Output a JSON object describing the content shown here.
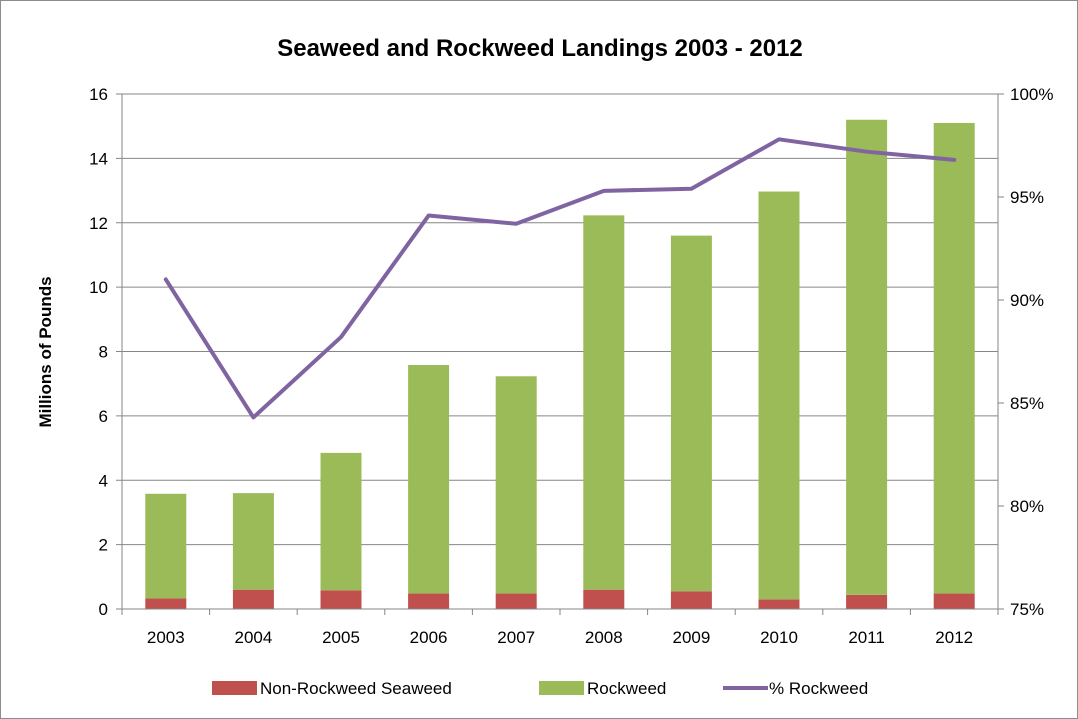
{
  "chart_data": {
    "type": "bar",
    "title": "Seaweed and Rockweed Landings 2003 - 2012",
    "ylabel": "Millions of Pounds",
    "xlabel": "",
    "categories": [
      "2003",
      "2004",
      "2005",
      "2006",
      "2007",
      "2008",
      "2009",
      "2010",
      "2011",
      "2012"
    ],
    "ylim": [
      0,
      16
    ],
    "y_ticks": [
      "0",
      "2",
      "4",
      "6",
      "8",
      "10",
      "12",
      "14",
      "16"
    ],
    "y2lim": [
      75,
      100
    ],
    "y2_ticks": [
      "75%",
      "80%",
      "85%",
      "90%",
      "95%",
      "100%"
    ],
    "stacked": true,
    "grid": true,
    "legend_position": "bottom",
    "series": [
      {
        "name": "Non-Rockweed Seaweed",
        "type": "bar",
        "axis": "left",
        "color": "#c0504d",
        "values": [
          0.33,
          0.6,
          0.58,
          0.48,
          0.48,
          0.6,
          0.55,
          0.3,
          0.44,
          0.48
        ]
      },
      {
        "name": "Rockweed",
        "type": "bar",
        "axis": "left",
        "color": "#9bbb59",
        "values": [
          3.25,
          3.0,
          4.27,
          7.1,
          6.75,
          11.63,
          11.05,
          12.67,
          14.76,
          14.62
        ]
      },
      {
        "name": "% Rockweed",
        "type": "line",
        "axis": "right",
        "color": "#8064a2",
        "values": [
          91.0,
          84.3,
          88.2,
          94.1,
          93.7,
          95.3,
          95.4,
          97.8,
          97.2,
          96.8
        ]
      }
    ]
  }
}
